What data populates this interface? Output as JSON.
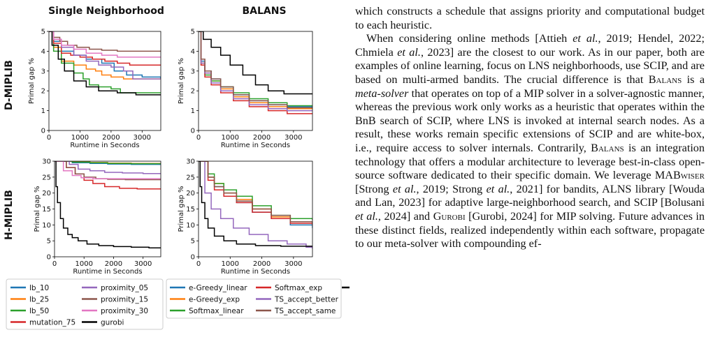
{
  "figure": {
    "col_titles": [
      "Single Neighborhood",
      "BALANS"
    ],
    "row_titles": [
      "D-MIPLIB",
      "H-MIPLIB"
    ],
    "ylabel": "Primal gap %",
    "xlabel": "Runtime in Seconds",
    "legend_single": [
      {
        "label": "lb_10",
        "color": "#1f77b4"
      },
      {
        "label": "lb_25",
        "color": "#ff7f0e"
      },
      {
        "label": "lb_50",
        "color": "#2ca02c"
      },
      {
        "label": "mutation_75",
        "color": "#d62728"
      },
      {
        "label": "proximity_05",
        "color": "#9467bd"
      },
      {
        "label": "proximity_15",
        "color": "#8c564b"
      },
      {
        "label": "proximity_30",
        "color": "#e377c2"
      },
      {
        "label": "gurobi",
        "color": "#000000"
      }
    ],
    "legend_balans": [
      {
        "label": "e-Greedy_linear",
        "color": "#1f77b4"
      },
      {
        "label": "e-Greedy_exp",
        "color": "#ff7f0e"
      },
      {
        "label": "Softmax_linear",
        "color": "#2ca02c"
      },
      {
        "label": "Softmax_exp",
        "color": "#d62728"
      },
      {
        "label": "TS_accept_better",
        "color": "#9467bd"
      },
      {
        "label": "TS_accept_same",
        "color": "#8c564b"
      },
      {
        "label": "gurobi",
        "color": "#000000"
      }
    ]
  },
  "chart_data": [
    {
      "type": "line",
      "title": "Single Neighborhood",
      "row": "D-MIPLIB",
      "xlabel": "Runtime in Seconds",
      "ylabel": "Primal gap %",
      "xlim": [
        0,
        3600
      ],
      "ylim": [
        0,
        5
      ],
      "xticks": [
        "0",
        "1000",
        "2000",
        "3000"
      ],
      "yticks": [
        "0",
        "1",
        "2",
        "3",
        "4",
        "5"
      ],
      "series": [
        {
          "name": "lb_10",
          "color": "#1f77b4",
          "x": [
            0,
            150,
            400,
            800,
            1200,
            1700,
            2100,
            2500,
            3000,
            3600
          ],
          "y": [
            5.0,
            4.5,
            4.0,
            3.8,
            3.6,
            3.4,
            3.0,
            2.8,
            2.7,
            2.6
          ]
        },
        {
          "name": "lb_25",
          "color": "#ff7f0e",
          "x": [
            0,
            150,
            400,
            800,
            1200,
            1500,
            1700,
            2000,
            2400,
            3600
          ],
          "y": [
            5.0,
            4.2,
            3.5,
            3.3,
            3.1,
            3.0,
            2.8,
            2.7,
            2.6,
            2.6
          ]
        },
        {
          "name": "lb_50",
          "color": "#2ca02c",
          "x": [
            0,
            150,
            400,
            800,
            1100,
            1300,
            1600,
            2000,
            2300,
            3600
          ],
          "y": [
            5.0,
            4.0,
            3.4,
            2.9,
            2.6,
            2.3,
            2.2,
            2.1,
            1.9,
            1.9
          ]
        },
        {
          "name": "mutation_75",
          "color": "#d62728",
          "x": [
            0,
            150,
            400,
            700,
            1000,
            1400,
            1800,
            2200,
            2600,
            3600
          ],
          "y": [
            5.0,
            4.4,
            3.9,
            3.8,
            3.7,
            3.6,
            3.5,
            3.4,
            3.3,
            3.3
          ]
        },
        {
          "name": "proximity_05",
          "color": "#9467bd",
          "x": [
            0,
            150,
            400,
            800,
            1200,
            1600,
            2000,
            2400,
            2700,
            3600
          ],
          "y": [
            5.0,
            4.6,
            4.2,
            3.8,
            3.5,
            3.3,
            3.2,
            3.0,
            2.6,
            2.6
          ]
        },
        {
          "name": "proximity_15",
          "color": "#8c564b",
          "x": [
            0,
            150,
            350,
            600,
            900,
            1300,
            1700,
            2200,
            2700,
            3600
          ],
          "y": [
            5.0,
            4.7,
            4.5,
            4.3,
            4.2,
            4.1,
            4.05,
            4.0,
            4.0,
            4.0
          ]
        },
        {
          "name": "proximity_30",
          "color": "#e377c2",
          "x": [
            0,
            150,
            400,
            800,
            1200,
            1700,
            2200,
            2700,
            3600
          ],
          "y": [
            5.0,
            4.6,
            4.3,
            4.1,
            3.9,
            3.8,
            3.7,
            3.7,
            3.7
          ]
        },
        {
          "name": "gurobi",
          "color": "#000000",
          "x": [
            0,
            100,
            300,
            500,
            800,
            1200,
            1600,
            2200,
            2800,
            3600
          ],
          "y": [
            5.0,
            4.3,
            3.6,
            3.0,
            2.5,
            2.2,
            2.0,
            1.9,
            1.8,
            1.8
          ]
        }
      ]
    },
    {
      "type": "line",
      "title": "BALANS",
      "row": "D-MIPLIB",
      "xlabel": "Runtime in Seconds",
      "ylabel": "Primal gap %",
      "xlim": [
        0,
        3600
      ],
      "ylim": [
        0,
        5
      ],
      "xticks": [
        "0",
        "1000",
        "2000",
        "3000"
      ],
      "yticks": [
        "0",
        "1",
        "2",
        "3",
        "4",
        "5"
      ],
      "series": [
        {
          "name": "e-Greedy_linear",
          "color": "#1f77b4",
          "x": [
            0,
            80,
            200,
            400,
            700,
            1100,
            1600,
            2200,
            2800,
            3600
          ],
          "y": [
            5.0,
            3.5,
            3.0,
            2.6,
            2.2,
            1.8,
            1.5,
            1.3,
            1.2,
            1.2
          ]
        },
        {
          "name": "e-Greedy_exp",
          "color": "#ff7f0e",
          "x": [
            0,
            80,
            200,
            400,
            700,
            1100,
            1600,
            2200,
            2800,
            3600
          ],
          "y": [
            5.0,
            3.4,
            2.9,
            2.5,
            2.1,
            1.7,
            1.4,
            1.2,
            1.1,
            1.1
          ]
        },
        {
          "name": "Softmax_linear",
          "color": "#2ca02c",
          "x": [
            0,
            80,
            200,
            400,
            700,
            1100,
            1600,
            2200,
            2800,
            3600
          ],
          "y": [
            5.0,
            3.3,
            2.8,
            2.5,
            2.2,
            1.9,
            1.6,
            1.4,
            1.25,
            1.25
          ]
        },
        {
          "name": "Softmax_exp",
          "color": "#d62728",
          "x": [
            0,
            80,
            200,
            400,
            700,
            1100,
            1600,
            2200,
            2800,
            3600
          ],
          "y": [
            5.0,
            3.3,
            2.7,
            2.3,
            1.9,
            1.5,
            1.2,
            1.0,
            0.85,
            0.85
          ]
        },
        {
          "name": "TS_accept_better",
          "color": "#9467bd",
          "x": [
            0,
            80,
            200,
            400,
            700,
            1100,
            1600,
            2200,
            2800,
            3600
          ],
          "y": [
            5.0,
            3.4,
            2.9,
            2.4,
            2.0,
            1.6,
            1.3,
            1.1,
            1.0,
            1.0
          ]
        },
        {
          "name": "TS_accept_same",
          "color": "#8c564b",
          "x": [
            0,
            80,
            200,
            400,
            700,
            1100,
            1600,
            2200,
            2800,
            3600
          ],
          "y": [
            5.0,
            3.6,
            3.0,
            2.6,
            2.2,
            1.8,
            1.5,
            1.3,
            1.15,
            1.15
          ]
        },
        {
          "name": "gurobi",
          "color": "#000000",
          "x": [
            0,
            150,
            400,
            700,
            1000,
            1400,
            1800,
            2200,
            2700,
            3600
          ],
          "y": [
            5.0,
            4.6,
            4.2,
            3.8,
            3.3,
            2.8,
            2.3,
            2.0,
            1.85,
            1.85
          ]
        }
      ]
    },
    {
      "type": "line",
      "title": "",
      "row": "H-MIPLIB",
      "xlabel": "Runtime in Seconds",
      "ylabel": "Primal gap %",
      "xlim": [
        0,
        3600
      ],
      "ylim": [
        0,
        30
      ],
      "xticks": [
        "0",
        "1000",
        "2000",
        "3000"
      ],
      "yticks": [
        "0",
        "5",
        "10",
        "15",
        "20",
        "25",
        "30"
      ],
      "series": [
        {
          "name": "lb_10",
          "color": "#1f77b4",
          "x": [
            0,
            300,
            600,
            1200,
            1800,
            2600,
            3600
          ],
          "y": [
            30,
            30,
            29.5,
            29.3,
            29.1,
            29.0,
            29.0
          ]
        },
        {
          "name": "lb_25",
          "color": "#ff7f0e",
          "x": [
            0,
            300,
            600,
            1200,
            1800,
            2600,
            3600
          ],
          "y": [
            30,
            30,
            29.8,
            29.6,
            29.4,
            29.3,
            29.3
          ]
        },
        {
          "name": "lb_50",
          "color": "#2ca02c",
          "x": [
            0,
            300,
            600,
            1200,
            1800,
            2600,
            3600
          ],
          "y": [
            30,
            30,
            29.7,
            29.5,
            29.3,
            29.2,
            29.2
          ]
        },
        {
          "name": "mutation_75",
          "color": "#d62728",
          "x": [
            0,
            400,
            700,
            1000,
            1300,
            1700,
            2200,
            2800,
            3600
          ],
          "y": [
            30,
            28,
            26,
            24,
            23,
            22,
            21.5,
            21.3,
            21.3
          ]
        },
        {
          "name": "proximity_05",
          "color": "#9467bd",
          "x": [
            0,
            500,
            800,
            1200,
            1700,
            2300,
            3000,
            3600
          ],
          "y": [
            30,
            29,
            27.5,
            27,
            26.5,
            26.3,
            26.1,
            26.1
          ]
        },
        {
          "name": "proximity_15",
          "color": "#8c564b",
          "x": [
            0,
            400,
            700,
            1000,
            1400,
            1800,
            2400,
            3000,
            3600
          ],
          "y": [
            30,
            28,
            26,
            25,
            24.5,
            24.3,
            24.2,
            24.2,
            24.2
          ]
        },
        {
          "name": "proximity_30",
          "color": "#e377c2",
          "x": [
            0,
            300,
            600,
            900,
            1300,
            1800,
            2400,
            3600
          ],
          "y": [
            30,
            27,
            25.5,
            24.8,
            24.5,
            24.5,
            24.5,
            24.5
          ]
        },
        {
          "name": "gurobi",
          "color": "#000000",
          "x": [
            0,
            50,
            100,
            200,
            300,
            450,
            600,
            800,
            1100,
            1500,
            2000,
            2600,
            3200,
            3600
          ],
          "y": [
            30,
            22,
            17,
            12,
            9,
            7,
            6,
            5,
            4,
            3.5,
            3.2,
            3.0,
            2.8,
            2.8
          ]
        }
      ]
    },
    {
      "type": "line",
      "title": "",
      "row": "H-MIPLIB",
      "xlabel": "Runtime in Seconds",
      "ylabel": "Primal gap %",
      "xlim": [
        0,
        3600
      ],
      "ylim": [
        0,
        30
      ],
      "xticks": [
        "0",
        "1000",
        "2000",
        "3000"
      ],
      "yticks": [
        "0",
        "5",
        "10",
        "15",
        "20",
        "25",
        "30"
      ],
      "series": [
        {
          "name": "e-Greedy_linear",
          "color": "#1f77b4",
          "x": [
            0,
            300,
            500,
            800,
            1200,
            1700,
            2300,
            2900,
            3600
          ],
          "y": [
            30,
            25,
            22,
            19,
            17,
            14,
            12,
            10,
            9
          ]
        },
        {
          "name": "e-Greedy_exp",
          "color": "#ff7f0e",
          "x": [
            0,
            300,
            500,
            800,
            1200,
            1700,
            2300,
            2900,
            3600
          ],
          "y": [
            30,
            25,
            23,
            20,
            18,
            15,
            12.5,
            11,
            10.5
          ]
        },
        {
          "name": "Softmax_linear",
          "color": "#2ca02c",
          "x": [
            0,
            300,
            500,
            800,
            1200,
            1700,
            2300,
            2900,
            3600
          ],
          "y": [
            30,
            26,
            23,
            21,
            19,
            16,
            13,
            12,
            11.5
          ]
        },
        {
          "name": "Softmax_exp",
          "color": "#d62728",
          "x": [
            0,
            300,
            500,
            800,
            1200,
            1700,
            2300,
            2900,
            3600
          ],
          "y": [
            30,
            24,
            21,
            19,
            17,
            14,
            12,
            10.5,
            10
          ]
        },
        {
          "name": "TS_accept_better",
          "color": "#9467bd",
          "x": [
            0,
            200,
            400,
            700,
            1100,
            1600,
            2200,
            2800,
            3400,
            3600
          ],
          "y": [
            30,
            20,
            15,
            12,
            9,
            7,
            5,
            4,
            3,
            2.5
          ]
        },
        {
          "name": "TS_accept_same",
          "color": "#8c564b",
          "x": [
            0,
            300,
            500,
            800,
            1200,
            1700,
            2300,
            2900,
            3600
          ],
          "y": [
            30,
            25,
            22,
            20,
            17.5,
            15,
            13,
            11,
            10.2
          ]
        },
        {
          "name": "gurobi",
          "color": "#000000",
          "x": [
            0,
            50,
            100,
            200,
            300,
            500,
            800,
            1200,
            1800,
            2600,
            3600
          ],
          "y": [
            30,
            22,
            17,
            12,
            9,
            6.5,
            5,
            4,
            3.5,
            3.3,
            3.2
          ]
        }
      ]
    }
  ],
  "body_text": {
    "p1": "which constructs a schedule that assigns priority and computational budget to each heuristic.",
    "p2": "When considering online methods [Attieh et al., 2019; Hendel, 2022; Chmiela et al., 2023] are the closest to our work. As in our paper, both are examples of online learning, focus on LNS neighborhoods, use SCIP, and are based on multi-armed bandits. The crucial difference is that BALANS is a meta-solver that operates on top of a MIP solver in a solver-agnostic manner, whereas the previous work only works as a heuristic that operates within the BnB search of SCIP, where LNS is invoked at internal search nodes. As a result, these works remain specific extensions of SCIP and are white-box, i.e., require access to solver internals. Contrarily, BALANS is an integration technology that offers a modular architecture to leverage best-in-class open-source software dedicated to their specific domain. We leverage MABWISER [Strong et al., 2019; Strong et al., 2021] for bandits, ALNS library [Wouda and Lan, 2023] for adaptive large-neighborhood search, and SCIP [Bolusani et al., 2024] and GUROBI [Gurobi, 2024] for MIP solving. Future advances in these distinct fields, realized independently within each software, propagate to our meta-solver with compounding ef-"
  }
}
